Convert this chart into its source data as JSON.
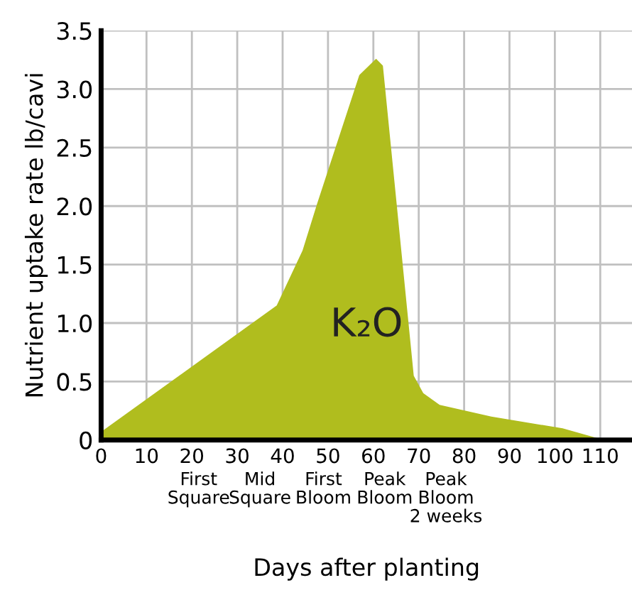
{
  "chart_data": {
    "type": "area",
    "xlabel": "Days after planting",
    "ylabel": "Nutrient uptake rate lb/cavi",
    "x": [
      0,
      38.7,
      44.4,
      47.6,
      56.9,
      60.6,
      62.1,
      68.9,
      71,
      74.6,
      86,
      101.7,
      110,
      116.7
    ],
    "series": [
      {
        "color": "#b0bd1e",
        "values": [
          0.07,
          1.15,
          1.62,
          2.02,
          3.12,
          3.26,
          3.2,
          0.55,
          0.4,
          0.3,
          0.2,
          0.1,
          0.01,
          0
        ]
      }
    ],
    "xlim": [
      0,
      117
    ],
    "xticks": [
      0,
      10,
      20,
      30,
      40,
      50,
      60,
      70,
      80,
      90,
      100,
      110
    ],
    "ylim": [
      0,
      3.5
    ],
    "yticks": [
      0,
      0.5,
      {
        "value": 1,
        "label": "1.0"
      },
      1.5,
      {
        "value": 2,
        "label": "2.0"
      },
      2.5,
      {
        "value": 3,
        "label": "3.0"
      },
      3.5
    ],
    "grid": true,
    "legend": false,
    "annotations": [
      "K₂O",
      {
        "text": "First\nSquare",
        "x": 21.5,
        "y": 0
      },
      {
        "text": "Mid\nSquare",
        "x": 35,
        "y": 0
      },
      {
        "text": "First\nBloom",
        "x": 49,
        "y": 0
      },
      {
        "text": "Peak\nBloom",
        "x": 62.5,
        "y": 0
      },
      {
        "text": "Peak\nBloom\n2 weeks",
        "x": 76,
        "y": 0
      }
    ]
  }
}
